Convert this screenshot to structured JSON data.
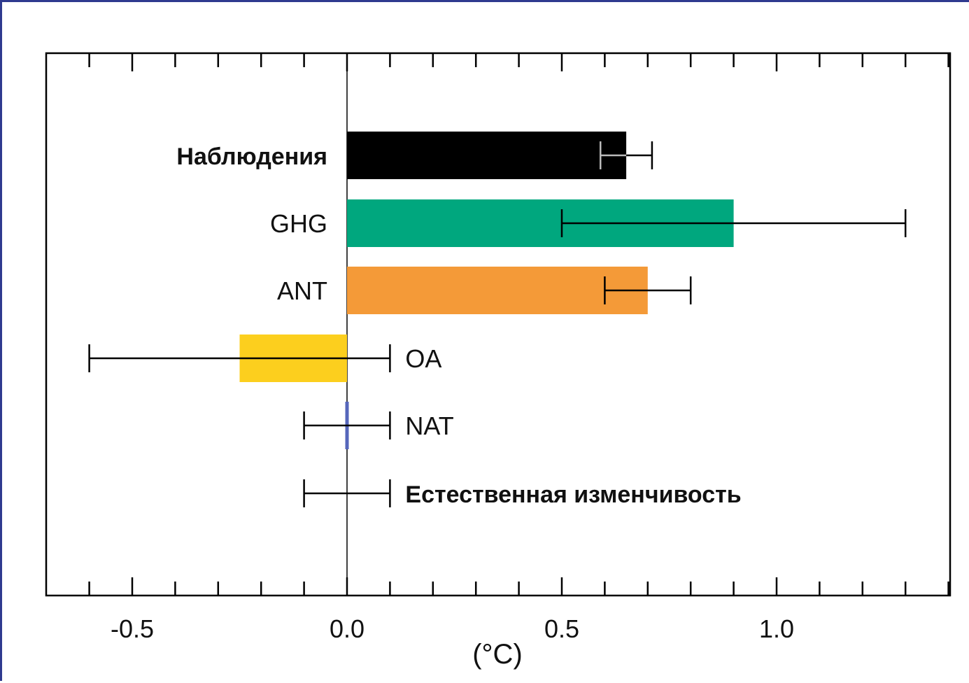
{
  "chart_data": {
    "type": "bar",
    "orientation": "horizontal",
    "xlabel": "(°C)",
    "xlim": [
      -0.7,
      1.4
    ],
    "x_ticks": [
      -0.5,
      0.0,
      0.5,
      1.0
    ],
    "x_tick_labels": [
      "-0.5",
      "0.0",
      "0.5",
      "1.0"
    ],
    "minor_tick_step": 0.1,
    "grid": false,
    "bars": [
      {
        "label": "Наблюдения",
        "value": 0.65,
        "err_low": 0.59,
        "err_high": 0.71,
        "color": "#000000",
        "label_side": "left",
        "label_bold": true,
        "inner_err_color": "#bbbbbb"
      },
      {
        "label": "GHG",
        "value": 0.9,
        "err_low": 0.5,
        "err_high": 1.3,
        "color": "#00a77e",
        "label_side": "left",
        "label_bold": false
      },
      {
        "label": "ANT",
        "value": 0.7,
        "err_low": 0.6,
        "err_high": 0.8,
        "color": "#f49a38",
        "label_side": "left",
        "label_bold": false
      },
      {
        "label": "OA",
        "value": -0.25,
        "err_low": -0.6,
        "err_high": 0.1,
        "color": "#fccf1e",
        "label_side": "right",
        "label_bold": false
      },
      {
        "label": "NAT",
        "value": 0.0,
        "err_low": -0.1,
        "err_high": 0.1,
        "color": "#5566bb",
        "label_side": "right",
        "label_bold": false
      },
      {
        "label": "Естественная изменчивость",
        "value": null,
        "err_low": -0.1,
        "err_high": 0.1,
        "color": null,
        "label_side": "right",
        "label_bold": true
      }
    ]
  },
  "colors": {
    "frame_border": "#2f3a8f",
    "axis": "#000000"
  }
}
